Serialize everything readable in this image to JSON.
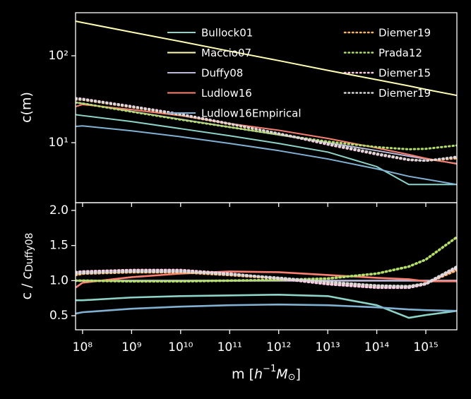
{
  "chart_data": [
    {
      "type": "line",
      "xscale": "log",
      "yscale": "log",
      "ylabel": "c(m)",
      "x": [
        72000000.0,
        100000000.0,
        1000000000.0,
        10000000000.0,
        100000000000.0,
        1000000000000.0,
        10000000000000.0,
        100000000000000.0,
        450000000000000.0,
        1000000000000000.0,
        4300000000000000.0
      ],
      "xlim": [
        72000000.0,
        4300000000000000.0
      ],
      "xticks": [
        100000000.0,
        1000000000.0,
        10000000000.0,
        100000000000.0,
        1000000000000.0,
        10000000000000.0,
        100000000000000.0,
        1000000000000000.0
      ],
      "ylim": [
        2.04,
        313
      ],
      "yticks": [
        {
          "value": 10,
          "label": "10¹"
        },
        {
          "value": 100,
          "label": "10²"
        }
      ],
      "legend": "upper center",
      "legend_columns": 2,
      "series": [
        {
          "name": "Bullock01",
          "color": "#8dd3c7",
          "linestyle": "solid",
          "values": [
            21,
            20.5,
            17.5,
            14.5,
            12,
            9.8,
            7.8,
            5.3,
            3.3,
            3.3,
            3.3
          ]
        },
        {
          "name": "Maccio07",
          "color": "#ffffb3",
          "linestyle": "solid",
          "values": [
            250,
            241,
            187,
            146,
            113,
            88,
            68,
            53,
            45,
            41,
            35
          ]
        },
        {
          "name": "Duffy08",
          "color": "#bebada",
          "linestyle": "solid",
          "values": [
            29,
            28.3,
            22.9,
            18.6,
            15.1,
            12.3,
            10.0,
            8.1,
            7.0,
            6.5,
            5.75
          ]
        },
        {
          "name": "Ludlow16",
          "color": "#fb8072",
          "linestyle": "solid",
          "values": [
            26,
            27.5,
            24,
            20.5,
            16.6,
            13.9,
            11.2,
            8.7,
            7.3,
            6.6,
            5.7
          ]
        },
        {
          "name": "Ludlow16Empirical",
          "color": "#80b1d3",
          "linestyle": "solid",
          "values": [
            15.4,
            15.6,
            13.7,
            11.7,
            9.8,
            8.1,
            6.5,
            5.0,
            4.1,
            3.8,
            3.3
          ]
        },
        {
          "name": "Diemer19",
          "color": "#fdb462",
          "linestyle": "dotted",
          "values": [
            31.3,
            31.1,
            25.6,
            20.8,
            16.3,
            12.7,
            9.7,
            7.5,
            6.4,
            6.2,
            6.6
          ]
        },
        {
          "name": "Prada12",
          "color": "#b3de69",
          "linestyle": "dotted",
          "values": [
            29,
            28.3,
            22.7,
            18.4,
            15.1,
            12.4,
            10.3,
            8.9,
            8.4,
            8.5,
            9.3
          ]
        },
        {
          "name": "Diemer15",
          "color": "#fccde5",
          "linestyle": "dotted",
          "values": [
            32.5,
            32,
            26.3,
            21.4,
            16.6,
            12.7,
            9.5,
            7.3,
            6.3,
            6.2,
            6.8
          ]
        },
        {
          "name": "Diemer19",
          "color": "#d9d9d9",
          "linestyle": "dotted",
          "values": [
            31.9,
            31.4,
            25.9,
            21,
            16.5,
            12.8,
            9.8,
            7.5,
            6.4,
            6.2,
            6.9
          ]
        }
      ]
    },
    {
      "type": "line",
      "xscale": "log",
      "yscale": "linear",
      "ylabel": [
        "c / ",
        "c",
        "Duffy08"
      ],
      "xlabel": [
        "m [",
        "h",
        "−1",
        "M",
        "⊙",
        "]"
      ],
      "x": [
        72000000.0,
        100000000.0,
        1000000000.0,
        10000000000.0,
        100000000000.0,
        1000000000000.0,
        10000000000000.0,
        100000000000000.0,
        450000000000000.0,
        1000000000000000.0,
        4300000000000000.0
      ],
      "xlim": [
        72000000.0,
        4300000000000000.0
      ],
      "xticks": [
        {
          "value": 100000000.0,
          "label": "10⁸"
        },
        {
          "value": 1000000000.0,
          "label": "10⁹"
        },
        {
          "value": 10000000000.0,
          "label": "10¹⁰"
        },
        {
          "value": 100000000000.0,
          "label": "10¹¹"
        },
        {
          "value": 1000000000000.0,
          "label": "10¹²"
        },
        {
          "value": 10000000000000.0,
          "label": "10¹³"
        },
        {
          "value": 100000000000000.0,
          "label": "10¹⁴"
        },
        {
          "value": 1000000000000000.0,
          "label": "10¹⁵"
        }
      ],
      "ylim": [
        0.3,
        2.11
      ],
      "yticks": [
        0.5,
        {
          "value": 1,
          "label": "1.0"
        },
        1.5,
        {
          "value": 2,
          "label": "2.0"
        }
      ],
      "series": [
        {
          "color": "#8dd3c7",
          "linestyle": "solid",
          "values": [
            0.72,
            0.72,
            0.76,
            0.78,
            0.79,
            0.8,
            0.78,
            0.65,
            0.47,
            0.51,
            0.57
          ]
        },
        {
          "color": "#bebada",
          "linestyle": "solid",
          "values": [
            1,
            1,
            1,
            1,
            1,
            1,
            1,
            1,
            1,
            1,
            1
          ]
        },
        {
          "color": "#fb8072",
          "linestyle": "solid",
          "values": [
            0.9,
            0.97,
            1.05,
            1.1,
            1.13,
            1.12,
            1.08,
            1.04,
            1.02,
            0.99,
            0.99
          ]
        },
        {
          "color": "#80b1d3",
          "linestyle": "solid",
          "values": [
            0.53,
            0.55,
            0.6,
            0.63,
            0.65,
            0.66,
            0.65,
            0.62,
            0.59,
            0.58,
            0.57
          ]
        },
        {
          "color": "#fdb462",
          "linestyle": "dotted",
          "values": [
            1.08,
            1.1,
            1.12,
            1.12,
            1.08,
            1.03,
            0.97,
            0.92,
            0.92,
            0.96,
            1.15
          ]
        },
        {
          "color": "#b3de69",
          "linestyle": "dotted",
          "values": [
            1.0,
            1.0,
            0.99,
            0.99,
            1.0,
            1.01,
            1.03,
            1.1,
            1.2,
            1.3,
            1.62
          ]
        },
        {
          "color": "#fccde5",
          "linestyle": "dotted",
          "values": [
            1.12,
            1.13,
            1.15,
            1.15,
            1.1,
            1.03,
            0.95,
            0.9,
            0.9,
            0.95,
            1.18
          ]
        },
        {
          "color": "#d9d9d9",
          "linestyle": "dotted",
          "values": [
            1.1,
            1.11,
            1.13,
            1.13,
            1.09,
            1.04,
            0.98,
            0.93,
            0.92,
            0.96,
            1.2
          ]
        }
      ]
    }
  ]
}
